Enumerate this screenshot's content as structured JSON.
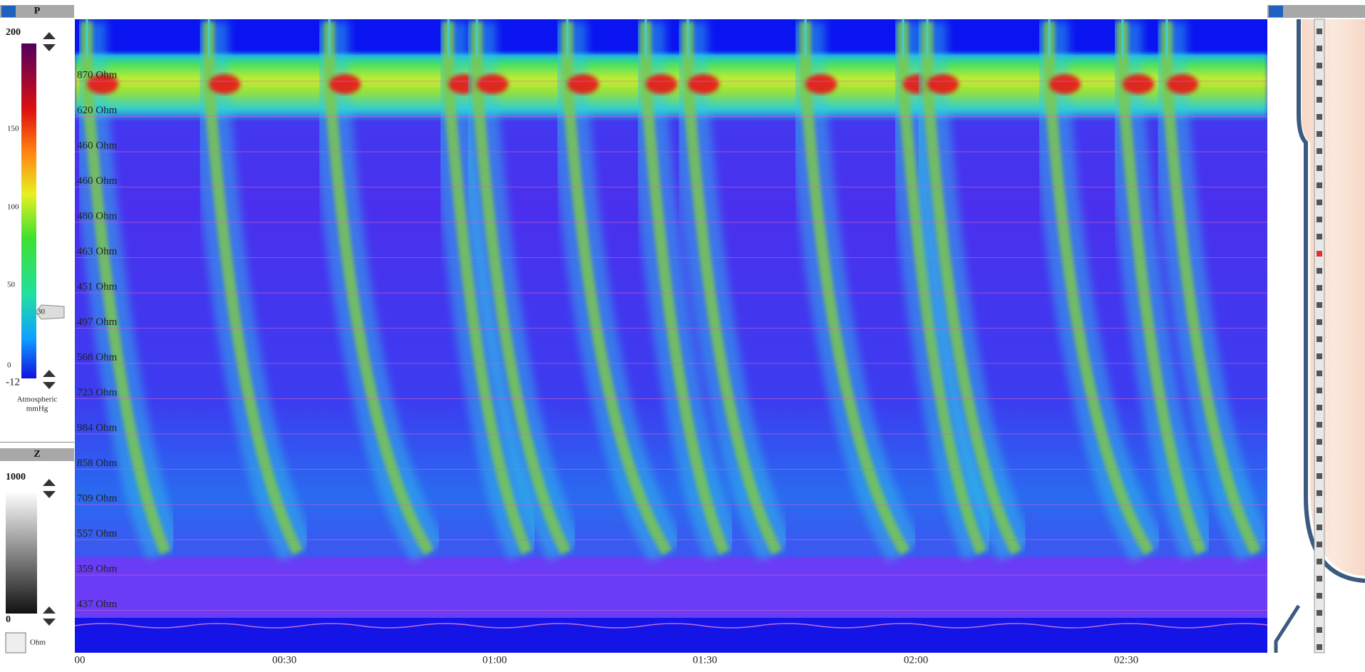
{
  "pressure_panel": {
    "title": "P",
    "max": "200",
    "ticks": [
      "150",
      "100",
      "50",
      "0"
    ],
    "min": "-12",
    "threshold": "30",
    "unit_line1": "Atmospheric",
    "unit_line2": "mmHg"
  },
  "impedance_panel": {
    "title": "Z",
    "max": "1000",
    "min": "0",
    "unit": "Ohm"
  },
  "channels": [
    "870 Ohm",
    "620 Ohm",
    "460 Ohm",
    "460 Ohm",
    "480 Ohm",
    "463 Ohm",
    "451 Ohm",
    "497 Ohm",
    "568 Ohm",
    "723 Ohm",
    "984 Ohm",
    "858 Ohm",
    "709 Ohm",
    "557 Ohm",
    "359 Ohm",
    "437 Ohm"
  ],
  "time_labels": [
    "00",
    "00:30",
    "01:00",
    "01:30",
    "02:00",
    "02:30"
  ]
}
